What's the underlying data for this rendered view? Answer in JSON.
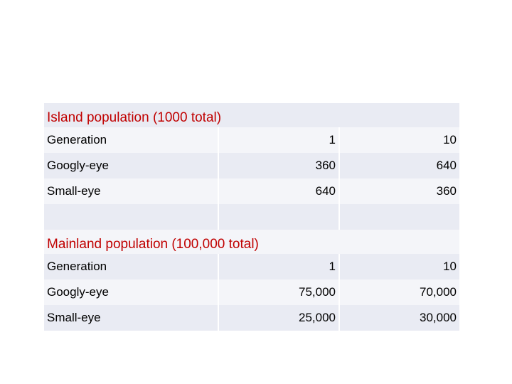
{
  "island": {
    "title": "Island population (1000 total)",
    "header": {
      "label": "Generation",
      "col1": "1",
      "col2": "10"
    },
    "rows": [
      {
        "label": "Googly-eye",
        "col1": "360",
        "col2": "640"
      },
      {
        "label": "Small-eye",
        "col1": "640",
        "col2": "360"
      }
    ]
  },
  "mainland": {
    "title": "Mainland population (100,000 total)",
    "header": {
      "label": "Generation",
      "col1": "1",
      "col2": "10"
    },
    "rows": [
      {
        "label": "Googly-eye",
        "col1": "75,000",
        "col2": "70,000"
      },
      {
        "label": "Small-eye",
        "col1": "25,000",
        "col2": "30,000"
      }
    ]
  },
  "colors": {
    "title": "#c00000",
    "band_dark": "#e9ebf3",
    "band_light": "#f4f5f9"
  }
}
